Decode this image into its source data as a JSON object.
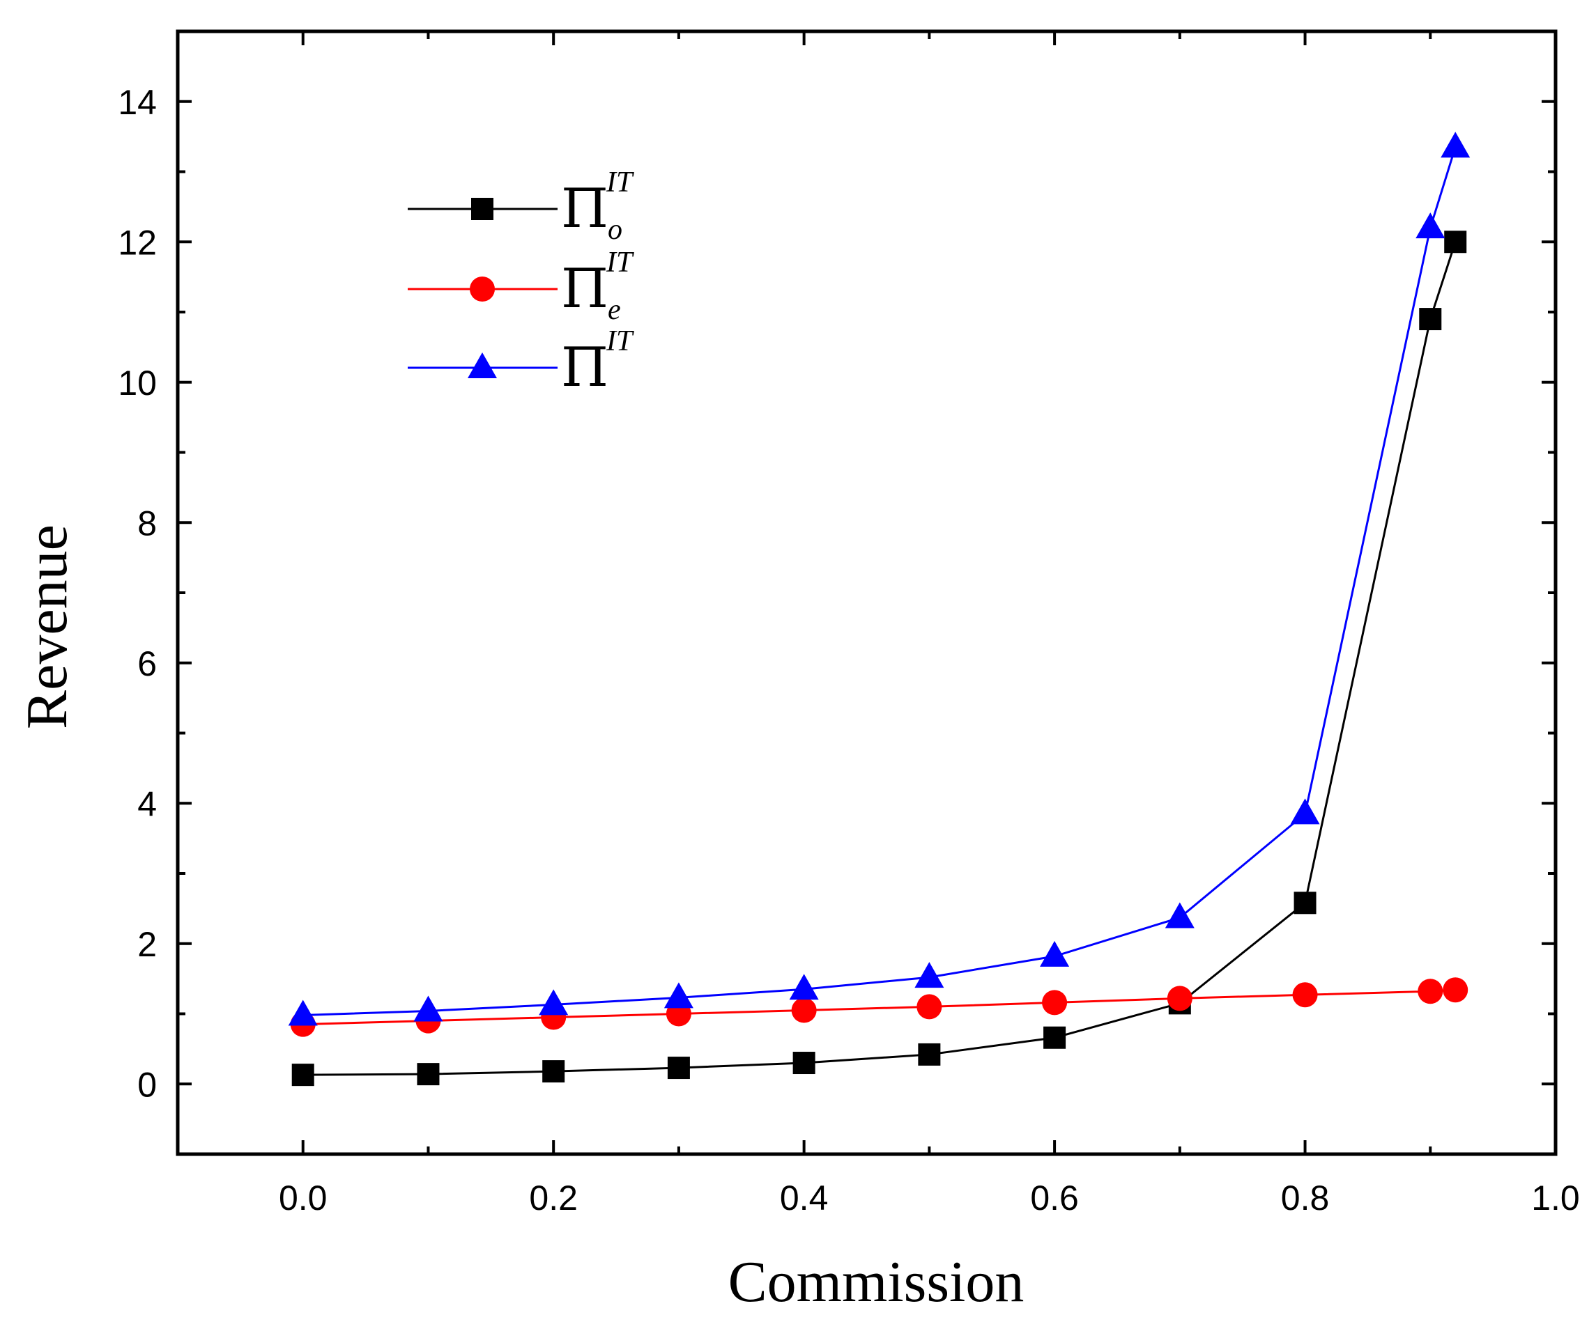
{
  "chart_data": {
    "type": "line",
    "title": "",
    "xlabel": "Commission",
    "ylabel": "Revenue",
    "xlim": [
      -0.1,
      1.0
    ],
    "ylim": [
      -1,
      15
    ],
    "xticks": [
      0.0,
      0.2,
      0.4,
      0.6,
      0.8,
      1.0
    ],
    "xtick_labels": [
      "0.0",
      "0.2",
      "0.4",
      "0.6",
      "0.8",
      "1.0"
    ],
    "yticks": [
      0,
      2,
      4,
      6,
      8,
      10,
      12,
      14
    ],
    "ytick_labels": [
      "0",
      "2",
      "4",
      "6",
      "8",
      "10",
      "12",
      "14"
    ],
    "grid": false,
    "legend_position": "top-left",
    "x": [
      0.0,
      0.1,
      0.2,
      0.3,
      0.4,
      0.5,
      0.6,
      0.7,
      0.8,
      0.9,
      0.92
    ],
    "series": [
      {
        "name": "Π_o^IT",
        "symbol": "Π",
        "subscript": "o",
        "superscript": "IT",
        "color": "#000000",
        "marker": "square",
        "values": [
          0.13,
          0.14,
          0.18,
          0.23,
          0.3,
          0.42,
          0.66,
          1.15,
          2.58,
          10.9,
          12.0
        ]
      },
      {
        "name": "Π_e^IT",
        "symbol": "Π",
        "subscript": "e",
        "superscript": "IT",
        "color": "#ff0000",
        "marker": "circle",
        "values": [
          0.85,
          0.9,
          0.95,
          1.0,
          1.05,
          1.1,
          1.16,
          1.22,
          1.27,
          1.32,
          1.34
        ]
      },
      {
        "name": "Π^IT",
        "symbol": "Π",
        "subscript": "",
        "superscript": "IT",
        "color": "#0000ff",
        "marker": "triangle",
        "values": [
          0.98,
          1.04,
          1.13,
          1.23,
          1.35,
          1.52,
          1.82,
          2.37,
          3.85,
          12.2,
          13.35
        ]
      }
    ]
  }
}
